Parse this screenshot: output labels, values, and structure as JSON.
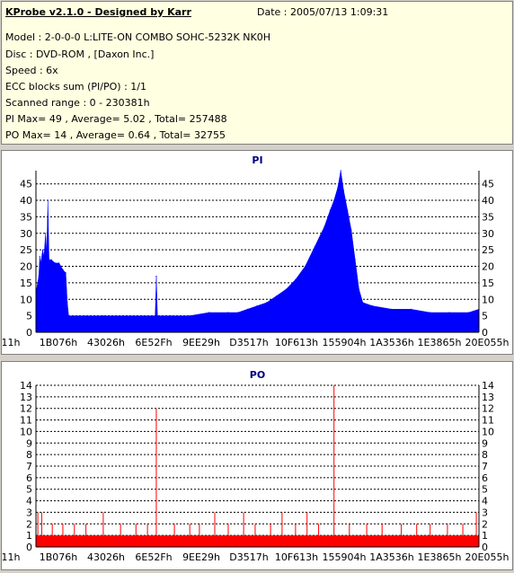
{
  "info": {
    "title": "KProbe v2.1.0 - Designed by Karr",
    "date": "Date : 2005/07/13 1:09:31",
    "lines": [
      "Model : 2-0-0-0 L:LITE-ON COMBO SOHC-5232K NK0H",
      "Disc : DVD-ROM ,  [Daxon Inc.]",
      "Speed : 6x",
      "ECC blocks sum (PI/PO) : 1/1",
      "Scanned range : 0 - 230381h",
      "PI Max= 49 , Average= 5.02 , Total= 257488",
      "PO Max= 14 , Average= 0.64 , Total= 32755"
    ]
  },
  "colors": {
    "pi_series": "#0000ff",
    "po_series": "#ff0000",
    "title_text": "#000080",
    "grid": "#000000",
    "info_background": "#ffffe1"
  },
  "chart_data": [
    {
      "type": "area",
      "title": "PI",
      "xlabel": "",
      "ylabel": "",
      "x_labels": [
        "11h",
        "1B076h",
        "43026h",
        "6E52Fh",
        "9EE29h",
        "D3517h",
        "10F613h",
        "155904h",
        "1A3536h",
        "1E3865h",
        "20E055h"
      ],
      "x_range": [
        0,
        230381
      ],
      "ylim": [
        0,
        49
      ],
      "y_ticks": [
        0,
        5,
        10,
        15,
        20,
        25,
        30,
        35,
        40,
        45
      ],
      "grid": "dashed horizontal",
      "series": [
        {
          "values": [
            [
              0,
              12
            ],
            [
              1500,
              17
            ],
            [
              2000,
              23
            ],
            [
              2500,
              21
            ],
            [
              3500,
              25
            ],
            [
              4200,
              23
            ],
            [
              5000,
              30
            ],
            [
              5600,
              24
            ],
            [
              6200,
              40
            ],
            [
              6800,
              22
            ],
            [
              8000,
              22
            ],
            [
              10000,
              21
            ],
            [
              12000,
              21
            ],
            [
              14000,
              19
            ],
            [
              15500,
              18
            ],
            [
              16300,
              9
            ],
            [
              17000,
              5
            ],
            [
              25000,
              5
            ],
            [
              35000,
              5
            ],
            [
              45000,
              5
            ],
            [
              55000,
              5
            ],
            [
              62000,
              5
            ],
            [
              62600,
              17
            ],
            [
              63200,
              5
            ],
            [
              70000,
              5
            ],
            [
              80000,
              5
            ],
            [
              90000,
              6
            ],
            [
              100000,
              6
            ],
            [
              105000,
              6
            ],
            [
              110000,
              7
            ],
            [
              115000,
              8
            ],
            [
              120000,
              9
            ],
            [
              125000,
              11
            ],
            [
              130000,
              13
            ],
            [
              135000,
              16
            ],
            [
              140000,
              20
            ],
            [
              145000,
              26
            ],
            [
              150000,
              32
            ],
            [
              153000,
              37
            ],
            [
              155000,
              40
            ],
            [
              157000,
              44
            ],
            [
              158500,
              49
            ],
            [
              160000,
              43
            ],
            [
              162000,
              37
            ],
            [
              164000,
              31
            ],
            [
              166000,
              22
            ],
            [
              168000,
              13
            ],
            [
              170000,
              9
            ],
            [
              175000,
              8
            ],
            [
              185000,
              7
            ],
            [
              195000,
              7
            ],
            [
              205000,
              6
            ],
            [
              215000,
              6
            ],
            [
              225000,
              6
            ],
            [
              230381,
              7
            ]
          ]
        }
      ]
    },
    {
      "type": "bar",
      "title": "PO",
      "xlabel": "",
      "ylabel": "",
      "x_labels": [
        "11h",
        "1B076h",
        "43026h",
        "6E52Fh",
        "9EE29h",
        "D3517h",
        "10F613h",
        "155904h",
        "1A3536h",
        "1E3865h",
        "20E055h"
      ],
      "x_range": [
        0,
        230381
      ],
      "ylim": [
        0,
        14
      ],
      "y_ticks": [
        0,
        1,
        2,
        3,
        4,
        5,
        6,
        7,
        8,
        9,
        10,
        11,
        12,
        13,
        14
      ],
      "grid": "dashed horizontal",
      "series": [
        {
          "baseline": 1,
          "spikes": [
            [
              62600,
              12
            ],
            [
              155000,
              14
            ],
            [
              1000,
              3
            ],
            [
              3000,
              3
            ],
            [
              8500,
              2
            ],
            [
              14000,
              2
            ],
            [
              20000,
              2
            ],
            [
              26000,
              2
            ],
            [
              35000,
              3
            ],
            [
              44000,
              2
            ],
            [
              52000,
              2
            ],
            [
              58000,
              2
            ],
            [
              72000,
              2
            ],
            [
              80000,
              2
            ],
            [
              85000,
              2
            ],
            [
              93000,
              3
            ],
            [
              100000,
              2
            ],
            [
              108000,
              3
            ],
            [
              114000,
              2
            ],
            [
              122000,
              2
            ],
            [
              128000,
              3
            ],
            [
              135000,
              2
            ],
            [
              141000,
              3
            ],
            [
              147000,
              2
            ],
            [
              163000,
              2
            ],
            [
              172000,
              2
            ],
            [
              180000,
              2
            ],
            [
              190000,
              2
            ],
            [
              198000,
              2
            ],
            [
              205000,
              2
            ],
            [
              214000,
              2
            ],
            [
              222000,
              2
            ],
            [
              229000,
              3
            ]
          ]
        }
      ]
    }
  ]
}
